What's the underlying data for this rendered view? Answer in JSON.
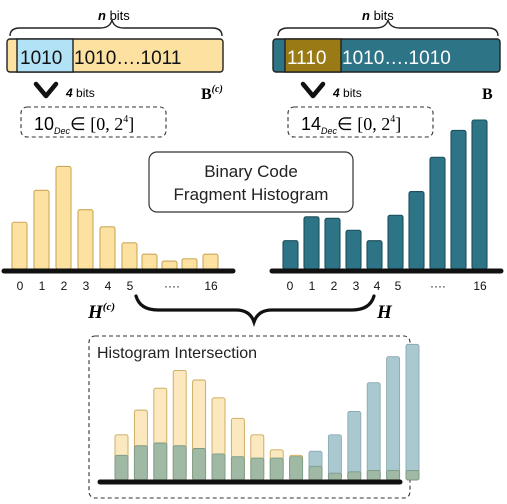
{
  "left_code": {
    "brace_label_n": "n",
    "brace_label_bits": " bits",
    "code_highlight": "1010",
    "code_rest": "1010….1011",
    "arrow_count": "4",
    "arrow_unit": " bits",
    "matrix_label": "B",
    "matrix_sup": "(c)",
    "decimal_value": "10",
    "decimal_sub": "Dec",
    "range_text": "∈ [0, 2",
    "range_exp": "4",
    "range_close": "]"
  },
  "right_code": {
    "brace_label_n": "n",
    "brace_label_bits": " bits",
    "code_highlight": "1110",
    "code_rest": "1010….1010",
    "arrow_count": "4",
    "arrow_unit": " bits",
    "matrix_label": "B",
    "decimal_value": "14",
    "decimal_sub": "Dec",
    "range_text": "∈ [0, 2",
    "range_exp": "4",
    "range_close": "]"
  },
  "center_title": {
    "line1": "Binary Code",
    "line2": "Fragment Histogram"
  },
  "left_histogram": {
    "ticks": [
      "0",
      "1",
      "2",
      "3",
      "4",
      "5",
      "16"
    ],
    "ellipsis": "····",
    "label": "H",
    "label_sup": "(c)",
    "values": [
      0.41,
      0.69,
      0.9,
      0.52,
      0.37,
      0.23,
      0.13,
      0.07,
      0.09,
      0.13
    ]
  },
  "right_histogram": {
    "ticks": [
      "0",
      "1",
      "2",
      "3",
      "4",
      "5",
      "16"
    ],
    "ellipsis": "····",
    "label": "H",
    "values": [
      0.19,
      0.35,
      0.34,
      0.26,
      0.19,
      0.36,
      0.52,
      0.75,
      0.93,
      1.0
    ]
  },
  "intersection": {
    "title": "Histogram Intersection",
    "bars": [
      {
        "a": 0.33,
        "b": 0.18
      },
      {
        "a": 0.51,
        "b": 0.25
      },
      {
        "a": 0.67,
        "b": 0.27
      },
      {
        "a": 0.8,
        "b": 0.25
      },
      {
        "a": 0.73,
        "b": 0.23
      },
      {
        "a": 0.6,
        "b": 0.19
      },
      {
        "a": 0.45,
        "b": 0.17
      },
      {
        "a": 0.33,
        "b": 0.16
      },
      {
        "a": 0.22,
        "b": 0.16
      },
      {
        "a": 0.18,
        "b": 0.17
      },
      {
        "a": 0.21,
        "b": 0.1
      },
      {
        "a": 0.33,
        "b": 0.05
      },
      {
        "a": 0.5,
        "b": 0.06
      },
      {
        "a": 0.71,
        "b": 0.07
      },
      {
        "a": 0.9,
        "b": 0.07
      },
      {
        "a": 0.99,
        "b": 0.07
      }
    ]
  },
  "colors": {
    "yellow": "#fce1a0",
    "yellow_edge": "#caa85a",
    "teal": "#2c7486",
    "teal_edge": "#1c4f5c",
    "highlight_blue": "#b2e2f6",
    "highlight_gold": "#9a7a14",
    "yellow_light": "#fbe8be",
    "teal_light": "#aac8d0",
    "overlap": "#9fb9a4"
  }
}
